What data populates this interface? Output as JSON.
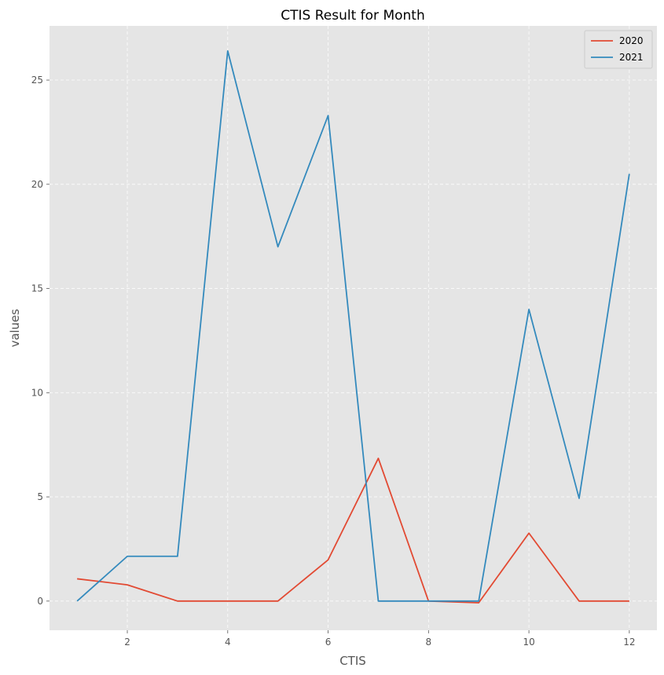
{
  "chart_data": {
    "type": "line",
    "title": "CTIS Result for Month",
    "xlabel": "CTIS",
    "ylabel": "values",
    "x": [
      1,
      2,
      3,
      4,
      5,
      6,
      7,
      8,
      9,
      10,
      11,
      12
    ],
    "series": [
      {
        "name": "2020",
        "color": "#e24a33",
        "values": [
          1.07,
          0.78,
          0,
          0,
          0,
          1.98,
          6.85,
          0,
          -0.08,
          3.26,
          0,
          0
        ]
      },
      {
        "name": "2021",
        "color": "#348abd",
        "values": [
          0,
          2.15,
          2.15,
          26.4,
          17.0,
          23.3,
          0,
          0,
          0,
          14.0,
          4.93,
          20.5
        ]
      }
    ],
    "xlim": [
      0.45,
      12.55
    ],
    "ylim": [
      -1.4,
      27.6
    ],
    "xticks": [
      2,
      4,
      6,
      8,
      10,
      12
    ],
    "yticks": [
      0,
      5,
      10,
      15,
      20,
      25
    ],
    "grid": true,
    "legend_position": "top-right",
    "background_color": "#e5e5e5"
  }
}
